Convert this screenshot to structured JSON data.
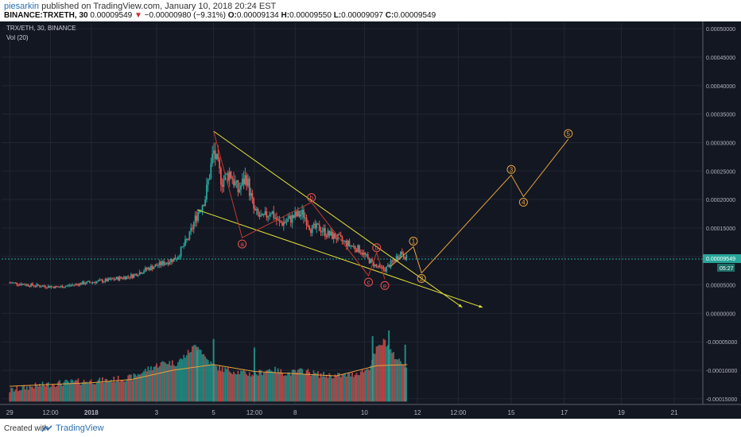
{
  "header": {
    "user": "piesarkin",
    "published": "published on TradingView.com, January 10, 2018 20:24 EST",
    "symbol": "BINANCE:TRXETH, 30",
    "price": "0.00009549",
    "change": "−0.00000980 (−9.31%)",
    "o_label": "O:",
    "o": "0.00009134",
    "h_label": "H:",
    "h": "0.00009550",
    "l_label": "L:",
    "l": "0.00009097",
    "c_label": "C:",
    "c": "0.00009549"
  },
  "legend": {
    "pair": "TRX/ETH, 30, BINANCE",
    "vol": "Vol (20)"
  },
  "footer": {
    "created": "Created with",
    "brand": "TradingView",
    "icon": "tradingview-logo-icon"
  },
  "price_tag": {
    "value": "0.00009549",
    "countdown": "05:27",
    "color": "#26a69a"
  },
  "colors": {
    "bg": "#131722",
    "up": "#26a69a",
    "down": "#ef5350",
    "wave": "#e8a33d",
    "trend": "#e6e23a",
    "pattern": "#c0392b",
    "ma": "#e8a33d"
  },
  "chart_data": {
    "type": "candlestick",
    "ylabels": [
      "0.00050000",
      "0.00045000",
      "0.00040000",
      "0.00035000",
      "0.00030000",
      "0.00025000",
      "0.00020000",
      "0.00015000",
      "0.00010000",
      "0.00005000",
      "0.00000000",
      "-0.00005000",
      "-0.00010000",
      "-0.00015000"
    ],
    "yticks": [
      0.0005,
      0.00045,
      0.0004,
      0.00035,
      0.0003,
      0.00025,
      0.0002,
      0.00015,
      0.0001,
      5e-05,
      0,
      -5e-05,
      -0.0001,
      -0.00015
    ],
    "ylim": [
      -0.00016,
      0.00051
    ],
    "xlabels": [
      "29",
      "12:00",
      "2018",
      "3",
      "5",
      "12:00",
      "8",
      "10",
      "12",
      "12:00",
      "15",
      "17",
      "19",
      "21"
    ],
    "xticks": [
      0,
      1,
      2,
      3.6,
      5,
      6,
      7,
      8.7,
      10,
      11,
      12.3,
      13.6,
      15,
      16.3
    ],
    "xlim": [
      -0.2,
      17
    ],
    "price_series": [
      [
        0,
        5.4e-05
      ],
      [
        0.6,
        4.9e-05
      ],
      [
        1.2,
        4.6e-05
      ],
      [
        1.8,
        5.3e-05
      ],
      [
        2.4,
        5.8e-05
      ],
      [
        3.0,
        6.6e-05
      ],
      [
        3.4,
        7.9e-05
      ],
      [
        3.8,
        8.9e-05
      ],
      [
        4.1,
        9.8e-05
      ],
      [
        4.4,
        0.000135
      ],
      [
        4.6,
        0.000175
      ],
      [
        4.8,
        0.000205
      ],
      [
        5.0,
        0.000285
      ],
      [
        5.2,
        0.000232
      ],
      [
        5.4,
        0.000248
      ],
      [
        5.6,
        0.000215
      ],
      [
        5.8,
        0.000241
      ],
      [
        6.0,
        0.000178
      ],
      [
        6.2,
        0.000165
      ],
      [
        6.4,
        0.000181
      ],
      [
        6.6,
        0.000158
      ],
      [
        6.8,
        0.000162
      ],
      [
        7.0,
        0.000171
      ],
      [
        7.2,
        0.000175
      ],
      [
        7.4,
        0.000148
      ],
      [
        7.6,
        0.00015
      ],
      [
        7.8,
        0.000139
      ],
      [
        8.0,
        0.000134
      ],
      [
        8.2,
        0.000125
      ],
      [
        8.4,
        0.000118
      ],
      [
        8.6,
        0.000111
      ],
      [
        8.8,
        9.4e-05
      ],
      [
        9.0,
        8.2e-05
      ],
      [
        9.2,
        7.7e-05
      ],
      [
        9.4,
        9.1e-05
      ],
      [
        9.6,
        0.000108
      ],
      [
        9.75,
        9.5e-05
      ]
    ],
    "volume_series": [
      [
        0,
        -0.000138
      ],
      [
        0.6,
        -0.00013
      ],
      [
        1.2,
        -0.000125
      ],
      [
        1.8,
        -0.000122
      ],
      [
        2.4,
        -0.00012
      ],
      [
        3.0,
        -0.000115
      ],
      [
        3.4,
        -0.0001
      ],
      [
        3.8,
        -8.8e-05
      ],
      [
        4.1,
        -9e-05
      ],
      [
        4.4,
        -7e-05
      ],
      [
        4.6,
        -5.5e-05
      ],
      [
        4.8,
        -8e-05
      ],
      [
        5.0,
        -9.5e-05
      ],
      [
        5.2,
        -0.0001
      ],
      [
        5.6,
        -0.000105
      ],
      [
        6.0,
        -0.00011
      ],
      [
        6.4,
        -0.0001
      ],
      [
        6.8,
        -0.000108
      ],
      [
        7.2,
        -0.000103
      ],
      [
        7.6,
        -0.00011
      ],
      [
        8.0,
        -0.000112
      ],
      [
        8.4,
        -0.00011
      ],
      [
        8.8,
        -0.0001
      ],
      [
        9.0,
        -6.5e-05
      ],
      [
        9.2,
        -5e-05
      ],
      [
        9.4,
        -7.5e-05
      ],
      [
        9.6,
        -8.8e-05
      ],
      [
        9.75,
        -9.5e-05
      ]
    ],
    "vol_ma": [
      [
        0,
        -0.000128
      ],
      [
        1,
        -0.000125
      ],
      [
        2,
        -0.000122
      ],
      [
        3,
        -0.000116
      ],
      [
        4,
        -0.0001
      ],
      [
        5,
        -9e-05
      ],
      [
        6,
        -0.000102
      ],
      [
        7,
        -0.000106
      ],
      [
        8,
        -0.00011
      ],
      [
        9,
        -9.2e-05
      ],
      [
        9.75,
        -9e-05
      ]
    ],
    "trend_upper": [
      [
        5,
        0.00032
      ],
      [
        10.4,
        4.6e-05
      ]
    ],
    "trend_lower": [
      [
        4.6,
        0.000182
      ],
      [
        10.8,
        3e-05
      ]
    ],
    "abcde": [
      {
        "label": "a",
        "x": 5.7,
        "y": 0.000133
      },
      {
        "label": "b",
        "x": 7.4,
        "y": 0.000195
      },
      {
        "label": "c",
        "x": 8.8,
        "y": 6.6e-05
      },
      {
        "label": "d",
        "x": 9.0,
        "y": 0.000107
      },
      {
        "label": "e",
        "x": 9.2,
        "y": 6e-05
      }
    ],
    "waves": [
      {
        "label": "1",
        "x": 9.9,
        "y": 0.000117
      },
      {
        "label": "2",
        "x": 10.1,
        "y": 7.1e-05
      },
      {
        "label": "3",
        "x": 12.3,
        "y": 0.000243
      },
      {
        "label": "4",
        "x": 12.6,
        "y": 0.000205
      },
      {
        "label": "5",
        "x": 13.7,
        "y": 0.000306
      }
    ],
    "wave_path": [
      [
        9.35,
        8.3e-05
      ],
      [
        9.9,
        0.000117
      ],
      [
        10.1,
        7.1e-05
      ],
      [
        12.3,
        0.000243
      ],
      [
        12.6,
        0.000205
      ],
      [
        13.7,
        0.000306
      ]
    ],
    "current_price": 9.549e-05
  }
}
